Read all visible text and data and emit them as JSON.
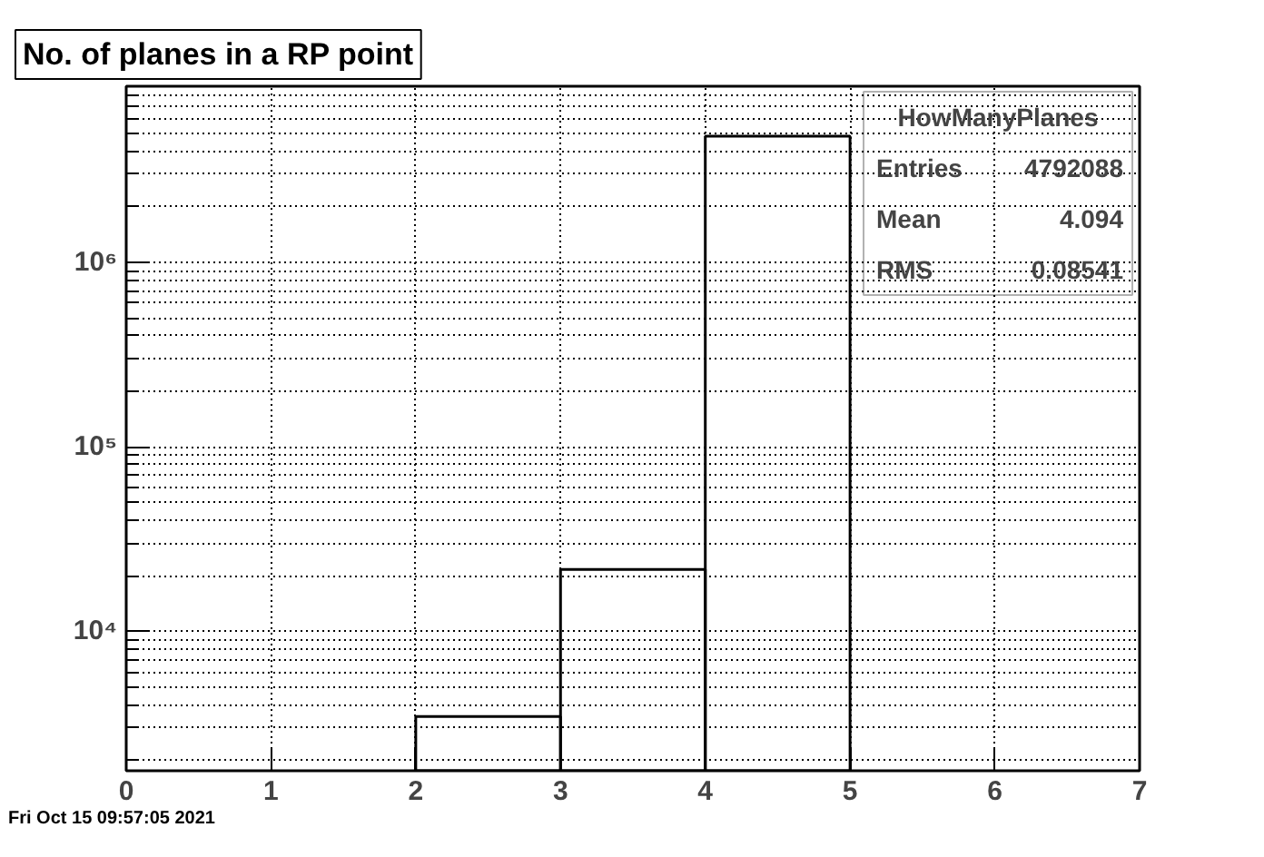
{
  "chart_data": {
    "type": "histogram",
    "title": "No. of planes in a RP point",
    "bins": [
      0,
      1,
      2,
      3,
      4,
      5,
      6,
      7
    ],
    "values": [
      null,
      null,
      3440,
      21600,
      4820000,
      null,
      null
    ],
    "color": "#000000",
    "log": "y",
    "xlim": [
      0,
      7
    ],
    "xticks": [
      0,
      1,
      2,
      3,
      4,
      5,
      6,
      7
    ],
    "ylim": [
      1750,
      9000000
    ],
    "yticks": [
      {
        "value": 2000,
        "label": null
      },
      {
        "value": 3000,
        "label": null
      },
      {
        "value": 4000,
        "label": null
      },
      {
        "value": 5000,
        "label": null
      },
      {
        "value": 6000,
        "label": null
      },
      {
        "value": 7000,
        "label": null
      },
      {
        "value": 8000,
        "label": null
      },
      {
        "value": 9000,
        "label": null
      },
      {
        "value": 10000,
        "label": "10⁴"
      },
      {
        "value": 20000,
        "label": null
      },
      {
        "value": 30000,
        "label": null
      },
      {
        "value": 40000,
        "label": null
      },
      {
        "value": 50000,
        "label": null
      },
      {
        "value": 60000,
        "label": null
      },
      {
        "value": 70000,
        "label": null
      },
      {
        "value": 80000,
        "label": null
      },
      {
        "value": 90000,
        "label": null
      },
      {
        "value": 100000,
        "label": "10⁵"
      },
      {
        "value": 200000,
        "label": null
      },
      {
        "value": 300000,
        "label": null
      },
      {
        "value": 400000,
        "label": null
      },
      {
        "value": 500000,
        "label": null
      },
      {
        "value": 600000,
        "label": null
      },
      {
        "value": 700000,
        "label": null
      },
      {
        "value": 800000,
        "label": null
      },
      {
        "value": 900000,
        "label": null
      },
      {
        "value": 1000000,
        "label": "10⁶"
      },
      {
        "value": 2000000,
        "label": null
      },
      {
        "value": 3000000,
        "label": null
      },
      {
        "value": 4000000,
        "label": null
      },
      {
        "value": 5000000,
        "label": null
      },
      {
        "value": 6000000,
        "label": null
      },
      {
        "value": 7000000,
        "label": null
      },
      {
        "value": 8000000,
        "label": null
      }
    ],
    "grid": true,
    "legend_title": "HowManyPlanes",
    "annotations": [
      "Entries 4792088",
      "Mean 4.094",
      "RMS 0.08541",
      "Fri Oct 15 09:57:05 2021"
    ]
  }
}
